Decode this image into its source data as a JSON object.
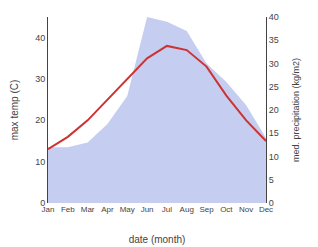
{
  "chart_data": {
    "type": "line",
    "categories": [
      "Jan",
      "Feb",
      "Mar",
      "Apr",
      "May",
      "Jun",
      "Jul",
      "Aug",
      "Sep",
      "Oct",
      "Nov",
      "Dec"
    ],
    "series": [
      {
        "type": "area",
        "axis": "y2",
        "color": "#c5cdf0",
        "values": [
          12,
          12,
          13,
          17,
          23,
          40,
          39,
          37,
          30,
          26,
          21,
          14
        ]
      },
      {
        "type": "line",
        "color": "#cc3333",
        "values": [
          13,
          16,
          20,
          25,
          30,
          35,
          38,
          37,
          33,
          26,
          20,
          15
        ]
      }
    ],
    "xlabel": "date (month)",
    "ylabel": "max temp (C)",
    "y2label": "med. precipitation (kg/m2)",
    "ylim": [
      0,
      45
    ],
    "yticks": [
      0,
      10,
      20,
      30,
      40
    ],
    "y2lim": [
      0,
      40
    ],
    "y2ticks": [
      0,
      5,
      10,
      15,
      20,
      25,
      30,
      35,
      40
    ],
    "grid": false
  }
}
